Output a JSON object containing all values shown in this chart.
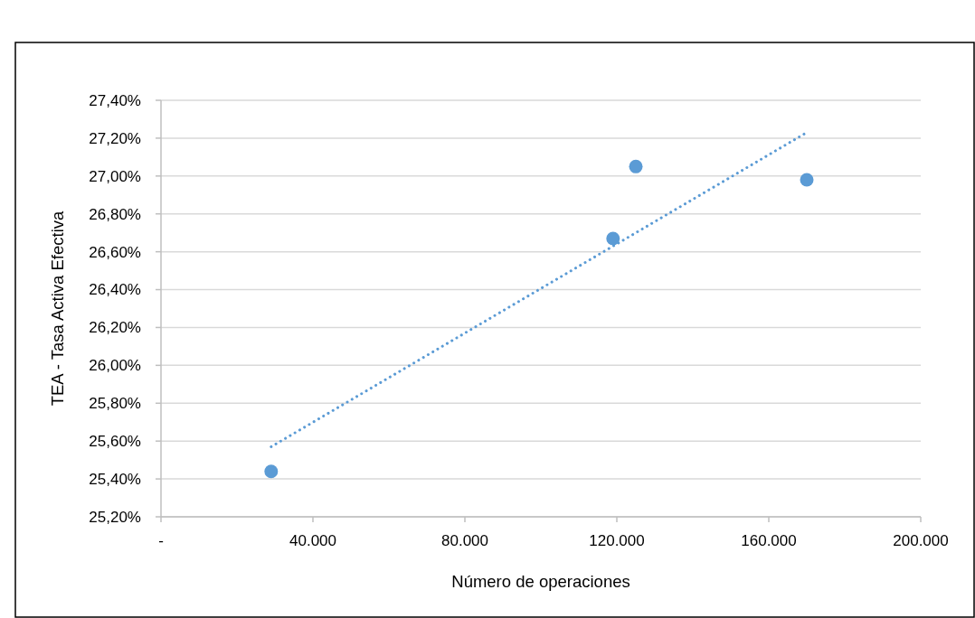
{
  "chart_data": {
    "type": "scatter",
    "xlabel": "Número de operaciones",
    "ylabel": "TEA - Tasa Activa Efectiva",
    "xlim": [
      0,
      200000
    ],
    "xticks": [
      {
        "value": 0,
        "label": "-"
      },
      {
        "value": 40000,
        "label": "40.000"
      },
      {
        "value": 80000,
        "label": "80.000"
      },
      {
        "value": 120000,
        "label": "120.000"
      },
      {
        "value": 160000,
        "label": "160.000"
      },
      {
        "value": 200000,
        "label": "200.000"
      }
    ],
    "ylim": [
      25.2,
      27.4
    ],
    "yticks": [
      {
        "value": 25.2,
        "label": "25,20%"
      },
      {
        "value": 25.4,
        "label": "25,40%"
      },
      {
        "value": 25.6,
        "label": "25,60%"
      },
      {
        "value": 25.8,
        "label": "25,80%"
      },
      {
        "value": 26.0,
        "label": "26,00%"
      },
      {
        "value": 26.2,
        "label": "26,20%"
      },
      {
        "value": 26.4,
        "label": "26,40%"
      },
      {
        "value": 26.6,
        "label": "26,60%"
      },
      {
        "value": 26.8,
        "label": "26,80%"
      },
      {
        "value": 27.0,
        "label": "27,00%"
      },
      {
        "value": 27.2,
        "label": "27,20%"
      },
      {
        "value": 27.4,
        "label": "27,40%"
      }
    ],
    "grid": "y",
    "series": [
      {
        "color": "#5b9bd5",
        "marker": "circle",
        "x": [
          29000,
          119000,
          125000,
          170000
        ],
        "values": [
          25.44,
          26.67,
          27.05,
          26.98
        ]
      },
      {
        "type": "line",
        "color": "#5b9bd5",
        "marker": "none",
        "line_style": "dotted",
        "x": [
          29000,
          170000
        ],
        "values": [
          25.57,
          27.23
        ]
      }
    ]
  }
}
